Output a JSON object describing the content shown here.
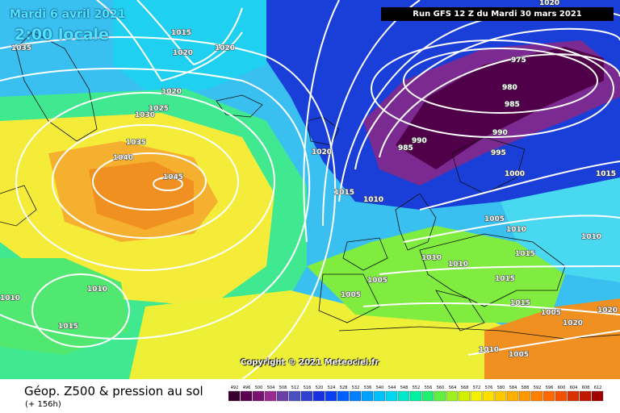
{
  "header": {
    "date": "Mardi 6 avril 2021",
    "local_time": "2:00 locale",
    "run": "Run GFS 12 Z du Mardi 30 mars 2021"
  },
  "copyright": "Copyright © 2021 Meteociel.fr",
  "footer": {
    "title": "Géop. Z500 & pression au sol",
    "lead_time": "(+ 156h)"
  },
  "isobar_labels": [
    "1035",
    "1015",
    "1020",
    "1020",
    "1020",
    "1025",
    "1030",
    "1035",
    "1040",
    "1045",
    "1020",
    "1015",
    "1010",
    "975",
    "980",
    "985",
    "990",
    "990",
    "985",
    "995",
    "1000",
    "1020",
    "1015",
    "1005",
    "1010",
    "1010",
    "1010",
    "1010",
    "1005",
    "1015",
    "1005",
    "1015",
    "1015",
    "1010",
    "1010",
    "1015",
    "1020",
    "1020",
    "1010",
    "1005",
    "1005"
  ],
  "scale": {
    "labels": [
      "492",
      "496",
      "500",
      "504",
      "508",
      "512",
      "516",
      "520",
      "524",
      "528",
      "532",
      "536",
      "540",
      "544",
      "548",
      "552",
      "556",
      "560",
      "564",
      "568",
      "572",
      "576",
      "580",
      "584",
      "588",
      "592",
      "596",
      "600",
      "604",
      "608",
      "612"
    ],
    "colors": [
      "#3a0030",
      "#5a0050",
      "#7a1070",
      "#9a2a90",
      "#6a40a8",
      "#4a50c0",
      "#2f3fd0",
      "#1a2fe0",
      "#0a40f0",
      "#0060ff",
      "#0080ff",
      "#00a0ff",
      "#00c0ff",
      "#00d8f0",
      "#00e8c8",
      "#00f0a0",
      "#20f070",
      "#60f040",
      "#a0f020",
      "#d0f000",
      "#f0f000",
      "#ffe000",
      "#ffc800",
      "#ffb000",
      "#ff9800",
      "#ff8000",
      "#ff6800",
      "#f05000",
      "#d83000",
      "#c01800",
      "#a00000"
    ]
  }
}
